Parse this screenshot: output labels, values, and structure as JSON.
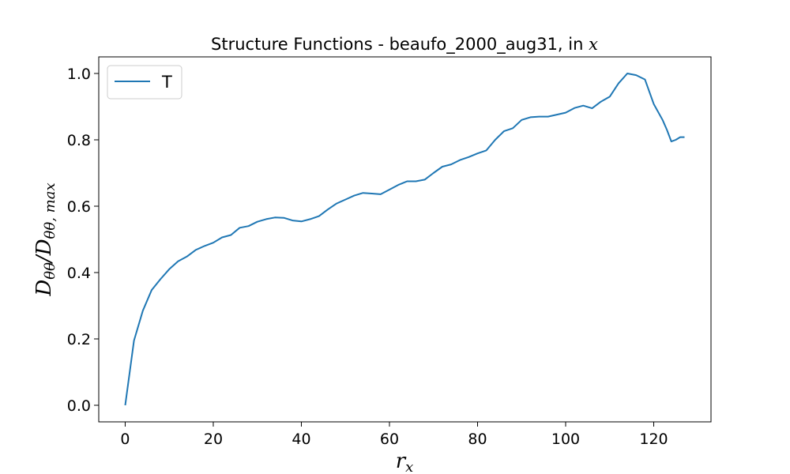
{
  "chart_data": {
    "type": "line",
    "title": "Structure Functions - beaufo_2000_aug31, in ",
    "title_var": "x",
    "xlabel": "r",
    "xlabel_sub": "x",
    "ylabel_main": "D",
    "ylabel_sub1": "θθ",
    "ylabel_slash": "/D",
    "ylabel_sub2": "θθ, max",
    "xlim": [
      -6,
      133
    ],
    "ylim": [
      -0.05,
      1.05
    ],
    "xticks": [
      0,
      20,
      40,
      60,
      80,
      100,
      120
    ],
    "xtick_labels": [
      "0",
      "20",
      "40",
      "60",
      "80",
      "100",
      "120"
    ],
    "yticks": [
      0.0,
      0.2,
      0.4,
      0.6,
      0.8,
      1.0
    ],
    "ytick_labels": [
      "0.0",
      "0.2",
      "0.4",
      "0.6",
      "0.8",
      "1.0"
    ],
    "legend_position": "top-left",
    "grid": false,
    "series": [
      {
        "name": "T",
        "color": "#1f77b4",
        "x": [
          0,
          2,
          4,
          6,
          8,
          10,
          12,
          14,
          16,
          18,
          20,
          22,
          24,
          26,
          28,
          30,
          32,
          34,
          36,
          38,
          40,
          42,
          44,
          46,
          48,
          50,
          52,
          54,
          56,
          58,
          60,
          62,
          64,
          66,
          68,
          70,
          72,
          74,
          76,
          78,
          80,
          82,
          84,
          86,
          88,
          90,
          92,
          94,
          96,
          98,
          100,
          102,
          104,
          106,
          108,
          110,
          112,
          114,
          116,
          118,
          120,
          122,
          123,
          124,
          125,
          126,
          127
        ],
        "y": [
          0.0,
          0.195,
          0.285,
          0.347,
          0.38,
          0.41,
          0.434,
          0.448,
          0.468,
          0.48,
          0.49,
          0.506,
          0.513,
          0.535,
          0.54,
          0.553,
          0.561,
          0.566,
          0.565,
          0.557,
          0.554,
          0.561,
          0.57,
          0.59,
          0.608,
          0.62,
          0.632,
          0.64,
          0.638,
          0.636,
          0.65,
          0.664,
          0.675,
          0.675,
          0.68,
          0.7,
          0.719,
          0.726,
          0.739,
          0.748,
          0.759,
          0.768,
          0.8,
          0.826,
          0.835,
          0.86,
          0.868,
          0.87,
          0.87,
          0.876,
          0.882,
          0.896,
          0.903,
          0.895,
          0.915,
          0.93,
          0.97,
          1.0,
          0.995,
          0.982,
          0.908,
          0.86,
          0.83,
          0.795,
          0.8,
          0.808,
          0.808
        ]
      }
    ]
  }
}
